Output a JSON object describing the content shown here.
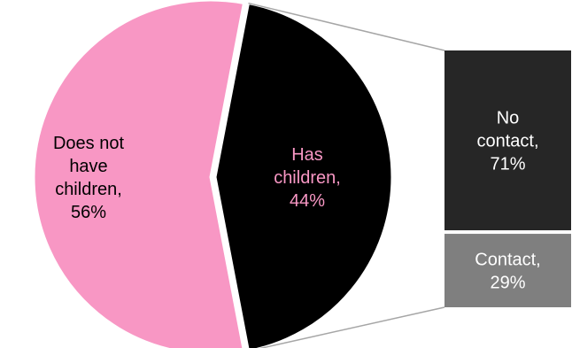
{
  "chart_data": {
    "type": "bar-of-pie",
    "pie": {
      "slices": [
        {
          "label_lines": [
            "Does not",
            "have",
            "children,",
            "56%"
          ],
          "value": 56,
          "color": "#F897C4",
          "label_color": "#000000",
          "exploded": false
        },
        {
          "label_lines": [
            "Has",
            "children,",
            "44%"
          ],
          "value": 44,
          "color": "#000000",
          "label_color": "#F897C4",
          "exploded": true
        }
      ]
    },
    "bar": {
      "of_slice": "Has children",
      "segments": [
        {
          "label_lines": [
            "No",
            "contact,",
            "71%"
          ],
          "value": 71,
          "color": "#262626",
          "label_color": "#FFFFFF"
        },
        {
          "label_lines": [
            "Contact,",
            "29%"
          ],
          "value": 29,
          "color": "#7F7F7F",
          "label_color": "#FFFFFF"
        }
      ]
    },
    "connector_color": "#A6A6A6"
  }
}
